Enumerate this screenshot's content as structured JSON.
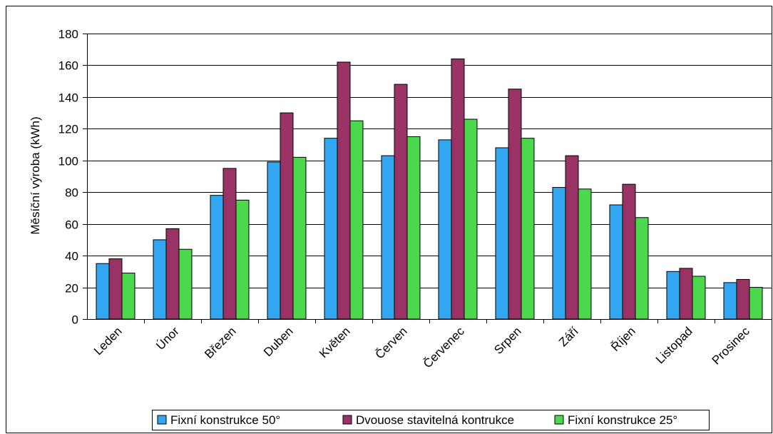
{
  "chart_data": {
    "type": "bar",
    "ylabel": "Měsíční výroba (kWh)",
    "xlabel": "",
    "ylim": [
      0,
      180
    ],
    "yticks": [
      0,
      20,
      40,
      60,
      80,
      100,
      120,
      140,
      160,
      180
    ],
    "grid": true,
    "legend_position": "bottom",
    "categories": [
      "Leden",
      "Únor",
      "Březen",
      "Duben",
      "Květen",
      "Červen",
      "Červenec",
      "Srpen",
      "Září",
      "Říjen",
      "Listopad",
      "Prosinec"
    ],
    "series": [
      {
        "name": "Fixní konstrukce 50°",
        "color": "#33a6f0",
        "values": [
          35,
          50,
          78,
          99,
          114,
          103,
          113,
          108,
          83,
          72,
          30,
          23
        ]
      },
      {
        "name": "Dvouose stavitelná kontrukce",
        "color": "#993366",
        "values": [
          38,
          57,
          95,
          130,
          162,
          148,
          164,
          145,
          103,
          85,
          32,
          25
        ]
      },
      {
        "name": "Fixní konstrukce 25°",
        "color": "#4cd84c",
        "values": [
          29,
          44,
          75,
          102,
          125,
          115,
          126,
          114,
          82,
          64,
          27,
          20
        ]
      }
    ]
  }
}
